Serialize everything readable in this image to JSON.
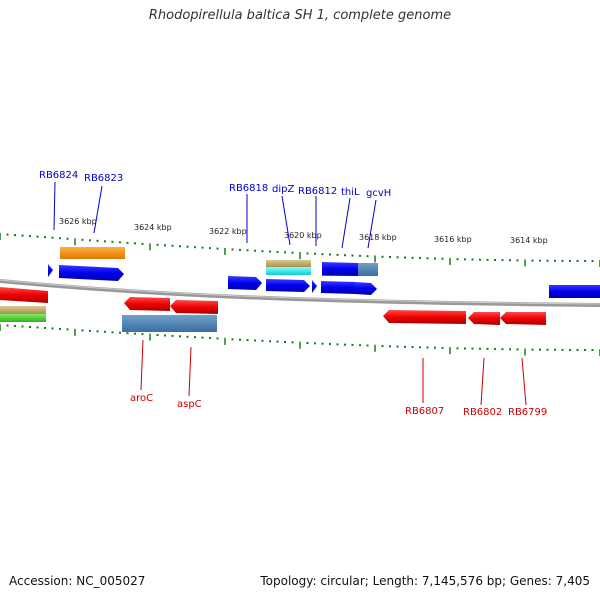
{
  "title": "Rhodopirellula baltica SH 1, complete genome",
  "footer": {
    "accession": "Accession: NC_005027",
    "summary": "Topology: circular; Length: 7,145,576 bp; Genes: 7,405"
  },
  "colors": {
    "forward_label": "#0000cc",
    "reverse_label": "#cc0000",
    "tick": "#1a7a1a",
    "backbone": "#888888"
  },
  "scale_labels": [
    "3626 kbp",
    "3624 kbp",
    "3622 kbp",
    "3620 kbp",
    "3618 kbp",
    "3616 kbp",
    "3614 kbp"
  ],
  "forward_genes": [
    "RB6824",
    "RB6823",
    "RB6818",
    "dipZ",
    "RB6812",
    "thiL",
    "gcvH"
  ],
  "reverse_genes": [
    "aroC",
    "aspC",
    "RB6807",
    "RB6802",
    "RB6799"
  ]
}
